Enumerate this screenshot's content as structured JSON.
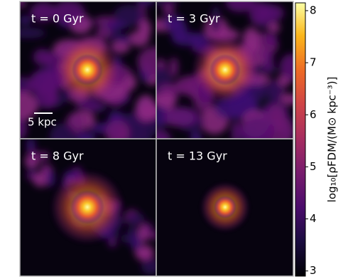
{
  "chart_data": {
    "type": "image-grid",
    "panels": [
      {
        "label": "t = 0 Gyr"
      },
      {
        "label": "t = 3 Gyr"
      },
      {
        "label": "t = 8 Gyr"
      },
      {
        "label": "t = 13 Gyr"
      }
    ],
    "scale_bar": "5 kpc",
    "colorbar": {
      "label": "log₁₀[ρFDM/(M⊙ kpc⁻³)]",
      "lim": [
        2.9,
        8.15
      ],
      "ticks": [
        3,
        4,
        5,
        6,
        7,
        8
      ],
      "colormap": "inferno"
    }
  }
}
